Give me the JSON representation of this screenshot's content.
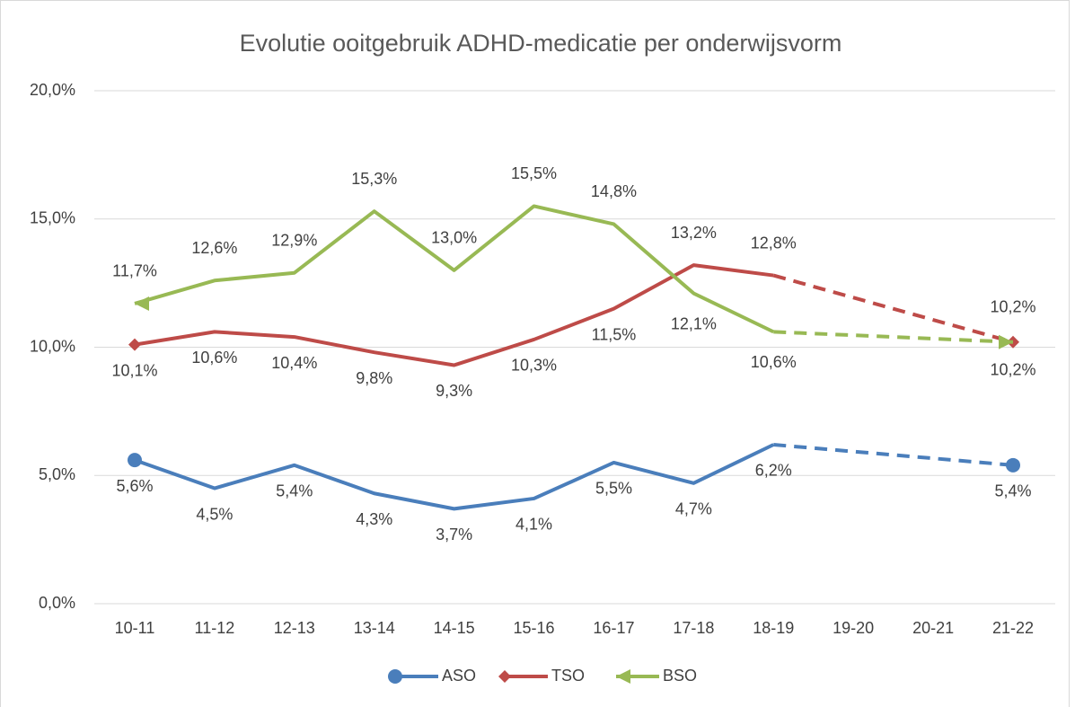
{
  "chart_data": {
    "type": "line",
    "title": "Evolutie ooitgebruik  ADHD-medicatie per onderwijsvorm",
    "categories": [
      "10-11",
      "11-12",
      "12-13",
      "13-14",
      "14-15",
      "15-16",
      "16-17",
      "17-18",
      "18-19",
      "19-20",
      "20-21",
      "21-22"
    ],
    "ylim": [
      0,
      20
    ],
    "yticks": [
      {
        "value": 0,
        "label": "0,0%"
      },
      {
        "value": 5,
        "label": "5,0%"
      },
      {
        "value": 10,
        "label": "10,0%"
      },
      {
        "value": 15,
        "label": "15,0%"
      },
      {
        "value": 20,
        "label": "20,0%"
      }
    ],
    "grid": true,
    "legend": "bottom",
    "series": [
      {
        "name": "ASO",
        "color": "#4a7ebb",
        "marker": "circle",
        "values": [
          5.6,
          4.5,
          5.4,
          4.3,
          3.7,
          4.1,
          5.5,
          4.7,
          6.2,
          null,
          null,
          5.4
        ],
        "value_labels": [
          "5,6%",
          "4,5%",
          "5,4%",
          "4,3%",
          "3,7%",
          "4,1%",
          "5,5%",
          "4,7%",
          "6,2%",
          null,
          null,
          "5,4%"
        ]
      },
      {
        "name": "TSO",
        "color": "#be4b48",
        "marker": "diamond",
        "values": [
          10.1,
          10.6,
          10.4,
          9.8,
          9.3,
          10.3,
          11.5,
          13.2,
          12.8,
          null,
          null,
          10.2
        ],
        "value_labels": [
          "10,1%",
          "10,6%",
          "10,4%",
          "9,8%",
          "9,3%",
          "10,3%",
          "11,5%",
          "13,2%",
          "12,8%",
          null,
          null,
          "10,2%"
        ]
      },
      {
        "name": "BSO",
        "color": "#98b954",
        "marker": "arrow",
        "values": [
          11.7,
          12.6,
          12.9,
          15.3,
          13.0,
          15.5,
          14.8,
          12.1,
          10.6,
          null,
          null,
          10.2
        ],
        "value_labels": [
          "11,7%",
          "12,6%",
          "12,9%",
          "15,3%",
          "13,0%",
          "15,5%",
          "14,8%",
          "12,1%",
          "10,6%",
          null,
          null,
          "10,2%"
        ]
      }
    ]
  }
}
